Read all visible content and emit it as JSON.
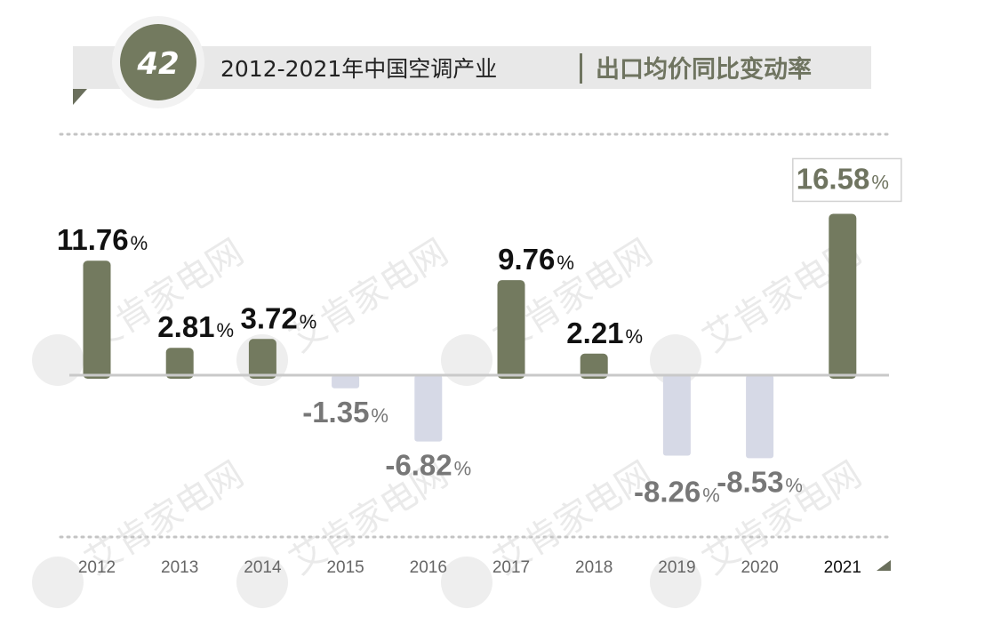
{
  "header": {
    "badge_number": "42",
    "title": "2012-2021年中国空调产业",
    "subtitle": "出口均价同比变动率"
  },
  "watermark": {
    "text": "艾肯家电网",
    "logo_icon": "aiken-logo-icon"
  },
  "colors": {
    "positive_bar": "#737a5f",
    "negative_bar": "#d6d9e6",
    "positive_label": "#111111",
    "negative_label": "#777777",
    "highlight_label": "#6f7460",
    "badge_bg": "#737a5f",
    "header_bg": "#e8e8e8"
  },
  "chart_data": {
    "type": "bar",
    "categories": [
      "2012",
      "2013",
      "2014",
      "2015",
      "2016",
      "2017",
      "2018",
      "2019",
      "2020",
      "2021"
    ],
    "values": [
      11.76,
      2.81,
      3.72,
      -1.35,
      -6.82,
      9.76,
      2.21,
      -8.26,
      -8.53,
      16.58
    ],
    "value_labels": [
      "11.76",
      "2.81",
      "3.72",
      "-1.35",
      "-6.82",
      "9.76",
      "2.21",
      "-8.26",
      "-8.53",
      "16.58"
    ],
    "unit": "%",
    "highlight_category": "2021",
    "ylim": [
      -10,
      18
    ],
    "grid": false,
    "legend": "none"
  }
}
